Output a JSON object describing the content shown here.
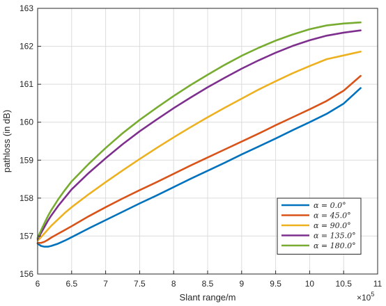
{
  "chart_data": {
    "type": "line",
    "xlabel": "Slant range/m",
    "ylabel": "pathloss (in dB)",
    "x_exponent_label": "×10",
    "x_exponent_power": "5",
    "xlim": [
      6,
      11
    ],
    "ylim": [
      156,
      163
    ],
    "xticks": [
      "6",
      "6.5",
      "7",
      "7.5",
      "8",
      "8.5",
      "9",
      "9.5",
      "10",
      "10.5",
      "11"
    ],
    "yticks": [
      "156",
      "157",
      "158",
      "159",
      "160",
      "161",
      "162",
      "163"
    ],
    "grid": true,
    "legend_position": "bottom-right",
    "x": [
      6.0,
      6.05,
      6.1,
      6.15,
      6.2,
      6.3,
      6.4,
      6.5,
      6.75,
      7.0,
      7.25,
      7.5,
      7.75,
      8.0,
      8.25,
      8.5,
      8.75,
      9.0,
      9.25,
      9.5,
      9.75,
      10.0,
      10.25,
      10.5,
      10.75
    ],
    "series": [
      {
        "name": "α = 0.0°",
        "color": "#0072BD",
        "values": [
          156.8,
          156.74,
          156.72,
          156.72,
          156.74,
          156.8,
          156.88,
          156.97,
          157.2,
          157.42,
          157.64,
          157.86,
          158.07,
          158.29,
          158.51,
          158.72,
          158.93,
          159.15,
          159.36,
          159.57,
          159.79,
          160.0,
          160.22,
          160.49,
          160.9
        ]
      },
      {
        "name": "α = 45.0°",
        "color": "#D95319",
        "values": [
          156.82,
          156.82,
          156.85,
          156.9,
          156.96,
          157.06,
          157.16,
          157.26,
          157.52,
          157.76,
          157.99,
          158.21,
          158.42,
          158.64,
          158.86,
          159.07,
          159.28,
          159.49,
          159.7,
          159.92,
          160.13,
          160.34,
          160.56,
          160.83,
          161.22
        ]
      },
      {
        "name": "α = 90.0°",
        "color": "#EDB120",
        "values": [
          156.88,
          156.97,
          157.07,
          157.17,
          157.27,
          157.44,
          157.61,
          157.76,
          158.1,
          158.42,
          158.73,
          159.03,
          159.32,
          159.6,
          159.87,
          160.13,
          160.38,
          160.62,
          160.86,
          161.08,
          161.29,
          161.48,
          161.66,
          161.76,
          161.86
        ]
      },
      {
        "name": "α = 135.0°",
        "color": "#7E2F8E",
        "values": [
          156.92,
          157.08,
          157.24,
          157.4,
          157.54,
          157.79,
          158.01,
          158.23,
          158.66,
          159.05,
          159.42,
          159.76,
          160.07,
          160.37,
          160.65,
          160.92,
          161.17,
          161.41,
          161.63,
          161.83,
          162.01,
          162.16,
          162.28,
          162.36,
          162.42
        ]
      },
      {
        "name": "α = 180.0°",
        "color": "#77AC30",
        "values": [
          156.95,
          157.15,
          157.34,
          157.52,
          157.68,
          157.96,
          158.21,
          158.44,
          158.9,
          159.32,
          159.71,
          160.06,
          160.38,
          160.69,
          160.98,
          161.25,
          161.51,
          161.75,
          161.96,
          162.15,
          162.31,
          162.45,
          162.55,
          162.6,
          162.63
        ]
      }
    ]
  }
}
